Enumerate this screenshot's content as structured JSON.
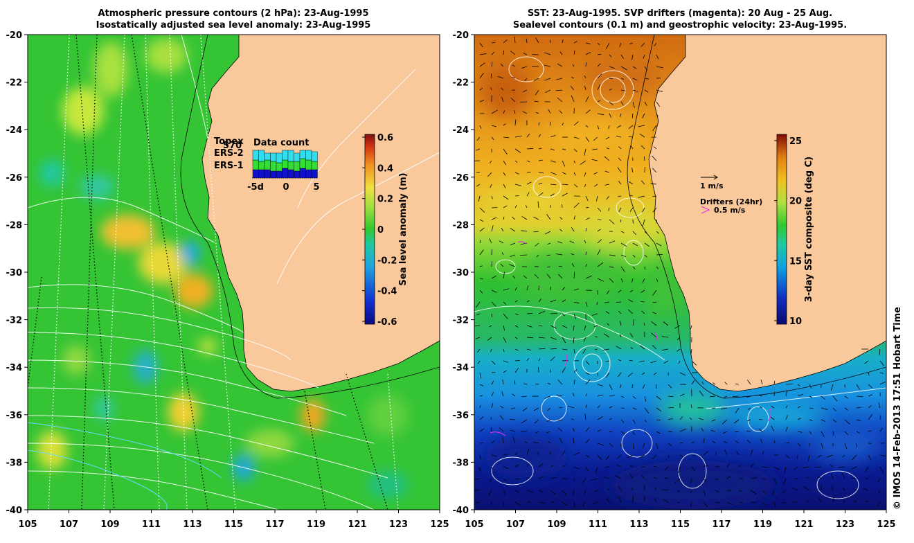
{
  "left_panel": {
    "title_line1": "Atmospheric pressure contours (2 hPa): 23-Aug-1995",
    "title_line2": "Isostatically adjusted sea level anomaly: 23-Aug-1995",
    "x_ticks": [
      "105",
      "107",
      "109",
      "111",
      "113",
      "115",
      "117",
      "119",
      "121",
      "123",
      "125"
    ],
    "y_ticks": [
      "-20",
      "-22",
      "-24",
      "-26",
      "-28",
      "-30",
      "-32",
      "-34",
      "-36",
      "-38",
      "-40"
    ],
    "colorbar": {
      "label": "Sea level anomaly (m)",
      "ticks": [
        "0.6",
        "0.4",
        "0.2",
        "0",
        "-0.2",
        "-0.4",
        "-0.6"
      ],
      "range": [
        -0.6,
        0.6
      ]
    },
    "legend": {
      "items": [
        {
          "label": "Topex",
          "color": "#33ddee"
        },
        {
          "label": "ERS-2",
          "color": "#33dd33"
        },
        {
          "label": "ERS-1",
          "color": "#1111cc"
        }
      ],
      "count_value": "570",
      "inset_title": "Data count",
      "inset_ticks": [
        "-5d",
        "0",
        "5"
      ],
      "bars": [
        {
          "day": -5,
          "topex": 0.35,
          "ers2": 0.35,
          "ers1": 0.3
        },
        {
          "day": -4,
          "topex": 0.4,
          "ers2": 0.3,
          "ers1": 0.3
        },
        {
          "day": -3,
          "topex": 0.25,
          "ers2": 0.35,
          "ers1": 0.3
        },
        {
          "day": -2,
          "topex": 0.3,
          "ers2": 0.35,
          "ers1": 0.25
        },
        {
          "day": -1,
          "topex": 0.35,
          "ers2": 0.3,
          "ers1": 0.25
        },
        {
          "day": 0,
          "topex": 0.35,
          "ers2": 0.3,
          "ers1": 0.35
        },
        {
          "day": 1,
          "topex": 0.4,
          "ers2": 0.3,
          "ers1": 0.3
        },
        {
          "day": 2,
          "topex": 0.3,
          "ers2": 0.35,
          "ers1": 0.25
        },
        {
          "day": 3,
          "topex": 0.3,
          "ers2": 0.35,
          "ers1": 0.35
        },
        {
          "day": 4,
          "topex": 0.35,
          "ers2": 0.35,
          "ers1": 0.3
        },
        {
          "day": 5,
          "topex": 0.35,
          "ers2": 0.3,
          "ers1": 0.3
        }
      ]
    }
  },
  "right_panel": {
    "title_line1": "SST: 23-Aug-1995. SVP drifters (magenta): 20 Aug - 25 Aug.",
    "title_line2": "Sealevel contours (0.1 m) and geostrophic velocity: 23-Aug-1995.",
    "x_ticks": [
      "105",
      "107",
      "109",
      "111",
      "113",
      "115",
      "117",
      "119",
      "121",
      "123",
      "125"
    ],
    "y_ticks": [
      "-20",
      "-22",
      "-24",
      "-26",
      "-28",
      "-30",
      "-32",
      "-34",
      "-36",
      "-38",
      "-40"
    ],
    "colorbar": {
      "label": "3-day SST composite (deg C)",
      "ticks": [
        "25",
        "20",
        "15",
        "10"
      ],
      "range": [
        10,
        25.5
      ]
    },
    "velocity_key": "1 m/s",
    "drifters_label": "Drifters (24hr)",
    "drifter_key": "0.5 m/s"
  },
  "credit": "© IMOS 14-Feb-2013 17:51 Hobart Time",
  "colors": {
    "land": "#f9c89b",
    "sla_background": "#33cc33",
    "drifter": "#dd33dd"
  }
}
